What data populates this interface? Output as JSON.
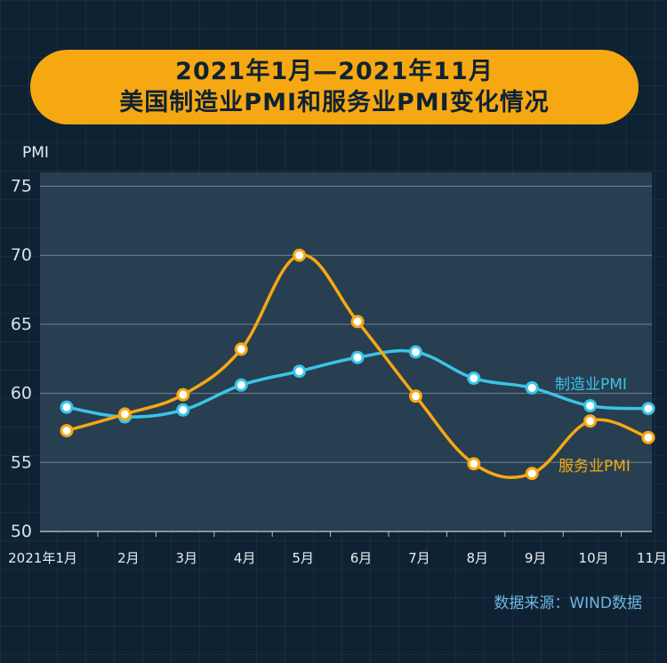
{
  "title": {
    "line1": "2021年1月—2021年11月",
    "line2": "美国制造业PMI和服务业PMI变化情况"
  },
  "source": "数据来源：WIND数据",
  "colors": {
    "manufacturing": "#3cc3e8",
    "services": "#f6a812"
  },
  "chart_data": {
    "type": "line",
    "title": "2021年1月—2021年11月 美国制造业PMI和服务业PMI变化情况",
    "ylabel": "PMI",
    "xlabel": "",
    "ylim": [
      50,
      76
    ],
    "yticks": [
      50,
      55,
      60,
      65,
      70,
      75
    ],
    "categories": [
      "2021年1月",
      "2月",
      "3月",
      "4月",
      "5月",
      "6月",
      "7月",
      "8月",
      "9月",
      "10月",
      "11月"
    ],
    "series": [
      {
        "name": "制造业PMI",
        "color": "#3cc3e8",
        "values": [
          59.0,
          58.3,
          58.8,
          60.6,
          61.6,
          62.6,
          63.0,
          61.1,
          60.4,
          59.1,
          58.9
        ]
      },
      {
        "name": "服务业PMI",
        "color": "#f6a812",
        "values": [
          57.3,
          58.5,
          59.9,
          63.2,
          70.0,
          65.2,
          59.8,
          54.9,
          54.2,
          58.0,
          56.8
        ]
      }
    ],
    "legend": "inline-right",
    "grid": true
  }
}
